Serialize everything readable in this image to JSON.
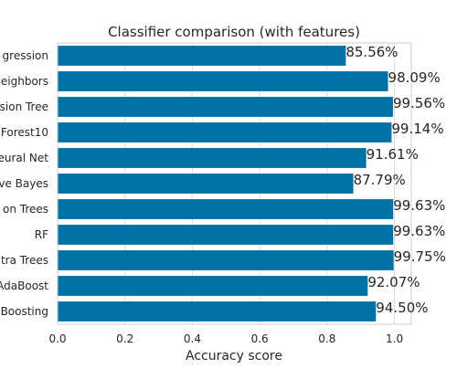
{
  "chart_data": {
    "type": "bar",
    "orientation": "horizontal",
    "title": "Classifier comparison (with features)",
    "xlabel": "Accuracy score",
    "ylabel": "",
    "xlim": [
      0.0,
      1.05
    ],
    "xticks": [
      "0.0",
      "0.2",
      "0.4",
      "0.6",
      "0.8",
      "1.0"
    ],
    "grid": true,
    "bar_color": "#0072a8",
    "categories": [
      "gression",
      "eighbors",
      "sion Tree",
      "Forest10",
      "eural Net",
      "ve Bayes",
      "on Trees",
      "RF",
      "tra Trees",
      "AdaBoost",
      "Boosting"
    ],
    "values": [
      0.8556,
      0.9809,
      0.9956,
      0.9914,
      0.9161,
      0.8779,
      0.9963,
      0.9963,
      0.9975,
      0.9207,
      0.945
    ],
    "data_labels": [
      "85.56%",
      "98.09%",
      "99.56%",
      "99.14%",
      "91.61%",
      "87.79%",
      "99.63%",
      "99.63%",
      "99.75%",
      "92.07%",
      "94.50%"
    ]
  }
}
